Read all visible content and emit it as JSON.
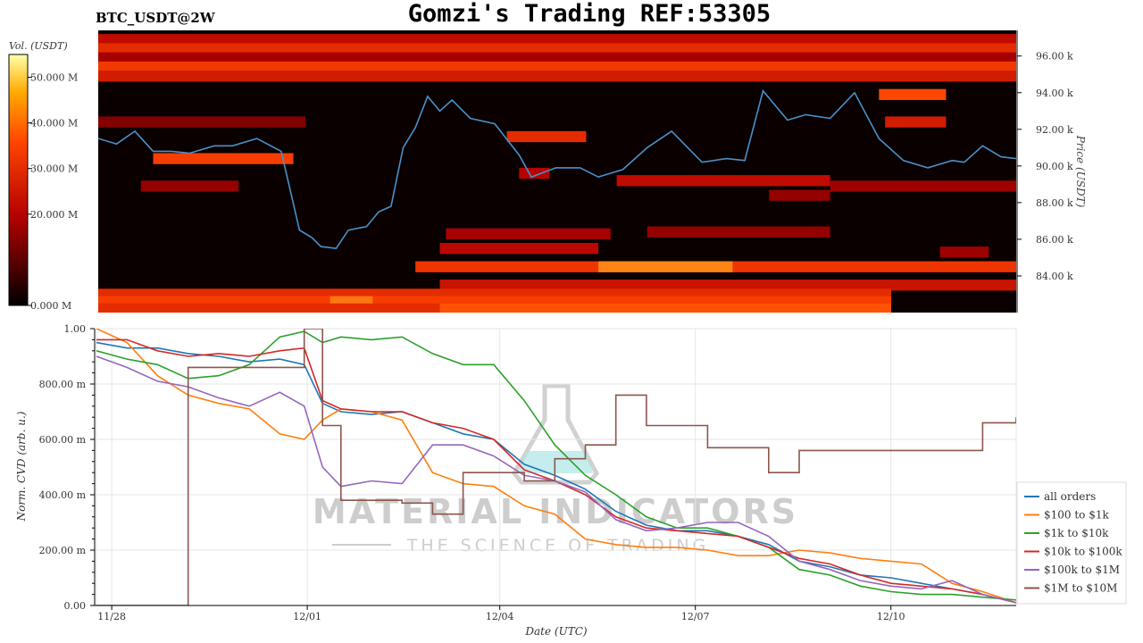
{
  "header": {
    "pair_label": "BTC_USDT@2W",
    "title": "Gomzi's Trading REF:53305"
  },
  "colors": {
    "heat_low": "#000000",
    "heat_mid": "#b30000",
    "heat_high": "#ff5500",
    "heat_top": "#ffff66",
    "price_line": "#4a90c8",
    "watermark": "#c9c9c9",
    "watermark_flask": "#88d8d8"
  },
  "watermark": {
    "line1": "MATERIAL INDICATORS",
    "line2": "THE SCIENCE OF TRADING"
  },
  "chart_data": [
    {
      "type": "heatmap",
      "name": "order-book-heatmap",
      "colorbar": {
        "label": "Vol. (USDT)",
        "ticks": [
          "0.000 M",
          "20.000 M",
          "30.000 M",
          "40.000 M",
          "50.000 M"
        ],
        "range": [
          0,
          55
        ]
      },
      "ylabel": "Price (USDT)",
      "y_ticks": [
        "84.00 k",
        "86.00 k",
        "88.00 k",
        "90.00 k",
        "92.00 k",
        "94.00 k",
        "96.00 k"
      ],
      "ylim": [
        82000,
        97400
      ],
      "xlim": [
        0,
        15.05
      ],
      "bands": [
        {
          "price": 96900,
          "x0": 0,
          "x1": 15.05,
          "v": 22
        },
        {
          "price": 96400,
          "x0": 0,
          "x1": 15.05,
          "v": 30
        },
        {
          "price": 95900,
          "x0": 0,
          "x1": 15.05,
          "v": 18
        },
        {
          "price": 95400,
          "x0": 0,
          "x1": 15.05,
          "v": 33
        },
        {
          "price": 94900,
          "x0": 0,
          "x1": 15.05,
          "v": 26
        },
        {
          "price": 93900,
          "x0": 12.8,
          "x1": 13.9,
          "v": 36
        },
        {
          "price": 92400,
          "x0": 0,
          "x1": 3.4,
          "v": 14
        },
        {
          "price": 92400,
          "x0": 12.9,
          "x1": 13.9,
          "v": 26
        },
        {
          "price": 91600,
          "x0": 6.7,
          "x1": 8.0,
          "v": 30
        },
        {
          "price": 90400,
          "x0": 0.9,
          "x1": 3.2,
          "v": 34
        },
        {
          "price": 89600,
          "x0": 6.9,
          "x1": 7.4,
          "v": 20
        },
        {
          "price": 89200,
          "x0": 8.5,
          "x1": 12.0,
          "v": 22
        },
        {
          "price": 88900,
          "x0": 0.7,
          "x1": 2.3,
          "v": 16
        },
        {
          "price": 88900,
          "x0": 12.0,
          "x1": 15.05,
          "v": 17
        },
        {
          "price": 88400,
          "x0": 11.0,
          "x1": 12.0,
          "v": 16
        },
        {
          "price": 86400,
          "x0": 9.0,
          "x1": 12.0,
          "v": 16
        },
        {
          "price": 86300,
          "x0": 5.7,
          "x1": 8.4,
          "v": 18
        },
        {
          "price": 85500,
          "x0": 5.6,
          "x1": 8.2,
          "v": 21
        },
        {
          "price": 85300,
          "x0": 13.8,
          "x1": 14.6,
          "v": 17
        },
        {
          "price": 84500,
          "x0": 5.2,
          "x1": 15.05,
          "v": 32
        },
        {
          "price": 84500,
          "x0": 8.2,
          "x1": 10.4,
          "v": 46
        },
        {
          "price": 83500,
          "x0": 5.6,
          "x1": 15.05,
          "v": 24
        },
        {
          "price": 83000,
          "x0": 0,
          "x1": 13.0,
          "v": 30
        },
        {
          "price": 82600,
          "x0": 0,
          "x1": 13.0,
          "v": 34
        },
        {
          "price": 82600,
          "x0": 3.8,
          "x1": 4.5,
          "v": 44
        },
        {
          "price": 82200,
          "x0": 0,
          "x1": 13.0,
          "v": 30
        },
        {
          "price": 82200,
          "x0": 5.6,
          "x1": 13.0,
          "v": 38
        }
      ],
      "price_series": {
        "name": "price",
        "x": [
          0,
          0.3,
          0.6,
          0.9,
          1.2,
          1.5,
          1.9,
          2.2,
          2.6,
          3.0,
          3.3,
          3.5,
          3.65,
          3.9,
          4.1,
          4.4,
          4.6,
          4.8,
          5.0,
          5.2,
          5.4,
          5.6,
          5.8,
          6.1,
          6.5,
          6.9,
          7.1,
          7.5,
          7.9,
          8.2,
          8.6,
          9.0,
          9.4,
          9.9,
          10.3,
          10.6,
          10.9,
          11.3,
          11.6,
          12.0,
          12.4,
          12.8,
          13.2,
          13.6,
          14.0,
          14.2,
          14.5,
          14.8,
          15.05
        ],
        "y": [
          91500,
          91200,
          91900,
          90800,
          90800,
          90700,
          91100,
          91100,
          91500,
          90800,
          86500,
          86100,
          85600,
          85500,
          86500,
          86700,
          87500,
          87800,
          91000,
          92100,
          93800,
          93000,
          93600,
          92600,
          92300,
          90600,
          89400,
          89900,
          89900,
          89400,
          89800,
          91000,
          91900,
          90200,
          90400,
          90300,
          94100,
          92500,
          92800,
          92600,
          94000,
          91500,
          90300,
          89900,
          90300,
          90200,
          91100,
          90500,
          90400
        ]
      }
    },
    {
      "type": "line",
      "name": "normalized-cvd",
      "xlabel": "Date (UTC)",
      "ylabel": "Norm. CVD (arb. u.)",
      "xlim": [
        0,
        15.05
      ],
      "ylim": [
        0,
        1
      ],
      "y_ticks": [
        "0.00",
        "200.00 m",
        "400.00 m",
        "600.00 m",
        "800.00 m",
        "1.00"
      ],
      "x_ticks": [
        {
          "label": "11/28",
          "x": 0.25
        },
        {
          "label": "12/01",
          "x": 3.45
        },
        {
          "label": "12/04",
          "x": 6.6
        },
        {
          "label": "12/07",
          "x": 9.8
        },
        {
          "label": "12/10",
          "x": 13.0
        }
      ],
      "grid": true,
      "legend_position": "right",
      "x": [
        0,
        0.5,
        1.0,
        1.5,
        2.0,
        2.5,
        3.0,
        3.4,
        3.7,
        4.0,
        4.5,
        5.0,
        5.5,
        6.0,
        6.5,
        7.0,
        7.5,
        8.0,
        8.5,
        9.0,
        9.5,
        10.0,
        10.5,
        11.0,
        11.5,
        12.0,
        12.5,
        13.0,
        13.5,
        14.0,
        14.5,
        15.05
      ],
      "series": [
        {
          "name": "all orders",
          "color": "#1f77b4",
          "values": [
            0.95,
            0.93,
            0.93,
            0.91,
            0.9,
            0.88,
            0.89,
            0.87,
            0.73,
            0.7,
            0.69,
            0.7,
            0.66,
            0.62,
            0.6,
            0.51,
            0.47,
            0.42,
            0.34,
            0.29,
            0.27,
            0.27,
            0.25,
            0.22,
            0.16,
            0.14,
            0.11,
            0.1,
            0.08,
            0.06,
            0.04,
            0.01
          ]
        },
        {
          "name": "$100 to $1k",
          "color": "#ff7f0e",
          "values": [
            1.0,
            0.95,
            0.83,
            0.76,
            0.73,
            0.71,
            0.62,
            0.6,
            0.67,
            0.71,
            0.7,
            0.67,
            0.48,
            0.44,
            0.43,
            0.36,
            0.33,
            0.24,
            0.22,
            0.21,
            0.21,
            0.2,
            0.18,
            0.18,
            0.2,
            0.19,
            0.17,
            0.16,
            0.15,
            0.08,
            0.05,
            0.01
          ]
        },
        {
          "name": "$1k to $10k",
          "color": "#2ca02c",
          "values": [
            0.92,
            0.89,
            0.87,
            0.82,
            0.83,
            0.87,
            0.97,
            0.99,
            0.95,
            0.97,
            0.96,
            0.97,
            0.91,
            0.87,
            0.87,
            0.74,
            0.58,
            0.47,
            0.4,
            0.32,
            0.28,
            0.28,
            0.25,
            0.21,
            0.13,
            0.11,
            0.07,
            0.05,
            0.04,
            0.04,
            0.03,
            0.02
          ]
        },
        {
          "name": "$10k to $100k",
          "color": "#d62728",
          "values": [
            0.96,
            0.96,
            0.92,
            0.9,
            0.91,
            0.9,
            0.92,
            0.93,
            0.74,
            0.71,
            0.7,
            0.7,
            0.66,
            0.64,
            0.6,
            0.49,
            0.45,
            0.4,
            0.32,
            0.28,
            0.27,
            0.26,
            0.25,
            0.21,
            0.17,
            0.15,
            0.11,
            0.08,
            0.07,
            0.06,
            0.04,
            0.01
          ]
        },
        {
          "name": "$100k to $1M",
          "color": "#9467bd",
          "values": [
            0.9,
            0.86,
            0.81,
            0.79,
            0.75,
            0.72,
            0.77,
            0.72,
            0.5,
            0.43,
            0.45,
            0.44,
            0.58,
            0.58,
            0.54,
            0.47,
            0.45,
            0.41,
            0.31,
            0.27,
            0.28,
            0.3,
            0.3,
            0.25,
            0.16,
            0.13,
            0.09,
            0.07,
            0.06,
            0.09,
            0.04,
            0.01
          ]
        },
        {
          "name": "$1M to $10M",
          "color": "#8c564b",
          "values": [
            0.0,
            0.0,
            0.0,
            0.86,
            0.86,
            0.86,
            0.86,
            1.0,
            0.65,
            0.38,
            0.38,
            0.37,
            0.33,
            0.48,
            0.48,
            0.45,
            0.53,
            0.58,
            0.76,
            0.65,
            0.65,
            0.57,
            0.57,
            0.48,
            0.56,
            0.56,
            0.56,
            0.56,
            0.56,
            0.56,
            0.66,
            0.68
          ]
        }
      ]
    }
  ]
}
